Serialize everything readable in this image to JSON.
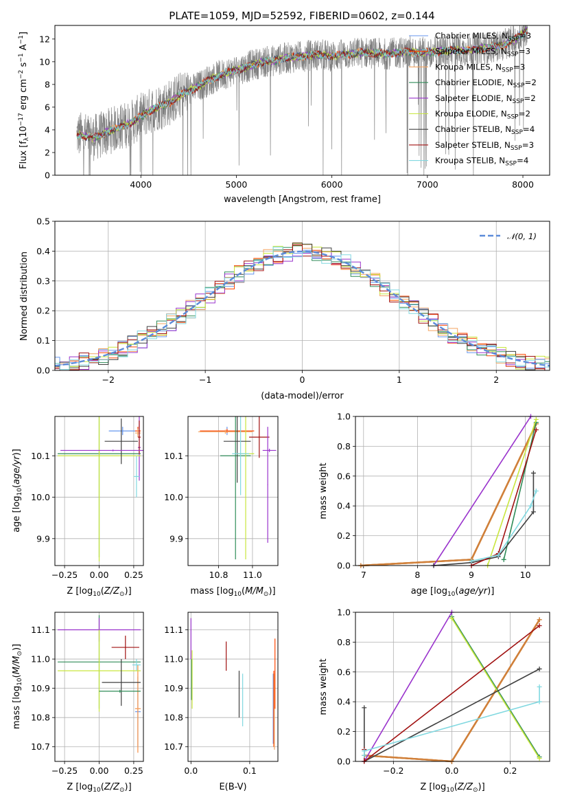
{
  "figure": {
    "title": "PLATE=1059, MJD=52592, FIBERID=0602, z=0.144"
  },
  "series_colors": {
    "Chabrier MILES": "#6495ed",
    "Salpeter MILES": "#ff4500",
    "Kroupa MILES": "#f4a460",
    "Chabrier ELODIE": "#2e8b57",
    "Salpeter ELODIE": "#9932cc",
    "Kroupa ELODIE": "#c8e63c",
    "Chabrier STELIB": "#404040",
    "Salpeter STELIB": "#a01010",
    "Kroupa STELIB": "#80d8e0",
    "data": "#808080",
    "normal": "#5b8bd9",
    "bold_path": "#d0803a"
  },
  "chart_data": [
    {
      "id": "spectrum",
      "type": "line",
      "xlabel": "wavelength [Angstrom, rest frame]",
      "ylabel": "Flux [f_λ 10^-17 erg cm^-2 s^-1 A^-1]",
      "xlim": [
        3100,
        8280
      ],
      "ylim": [
        0,
        13.2
      ],
      "xticks": [
        4000,
        5000,
        6000,
        7000,
        8000
      ],
      "yticks": [
        0,
        2,
        4,
        6,
        8,
        10,
        12
      ],
      "grid": false,
      "legend_position": "right",
      "legend": [
        {
          "label": "Chabrier MILES, N_SSP=3",
          "name": "Chabrier MILES",
          "text": "Chabrier MILES, N",
          "sub": "SSP",
          "tail": "=3"
        },
        {
          "label": "Salpeter MILES, N_SSP=3",
          "name": "Salpeter MILES",
          "text": "Salpeter MILES, N",
          "sub": "SSP",
          "tail": "=3"
        },
        {
          "label": "Kroupa MILES, N_SSP=3",
          "name": "Kroupa MILES",
          "text": "Kroupa MILES, N",
          "sub": "SSP",
          "tail": "=3"
        },
        {
          "label": "Chabrier ELODIE, N_SSP=2",
          "name": "Chabrier ELODIE",
          "text": "Chabrier ELODIE, N",
          "sub": "SSP",
          "tail": "=2"
        },
        {
          "label": "Salpeter ELODIE, N_SSP=2",
          "name": "Salpeter ELODIE",
          "text": "Salpeter ELODIE, N",
          "sub": "SSP",
          "tail": "=2"
        },
        {
          "label": "Kroupa ELODIE, N_SSP=2",
          "name": "Kroupa ELODIE",
          "text": "Kroupa ELODIE, N",
          "sub": "SSP",
          "tail": "=2"
        },
        {
          "label": "Chabrier STELIB, N_SSP=4",
          "name": "Chabrier STELIB",
          "text": "Chabrier STELIB, N",
          "sub": "SSP",
          "tail": "=4"
        },
        {
          "label": "Salpeter STELIB, N_SSP=3",
          "name": "Salpeter STELIB",
          "text": "Salpeter STELIB, N",
          "sub": "SSP",
          "tail": "=3"
        },
        {
          "label": "Kroupa STELIB, N_SSP=4",
          "name": "Kroupa STELIB",
          "text": "Kroupa STELIB, N",
          "sub": "SSP",
          "tail": "=4"
        }
      ],
      "model_continuum": {
        "wavelength": [
          3330,
          3400,
          3500,
          3600,
          3700,
          3800,
          3900,
          4000,
          4100,
          4200,
          4300,
          4400,
          4500,
          4600,
          4700,
          4800,
          4900,
          5000,
          5100,
          5200,
          5300,
          5400,
          5500,
          5600,
          5700,
          5800,
          5900,
          6000,
          6100,
          6200,
          6300,
          6400,
          6500,
          6600,
          6700,
          6800,
          6900,
          7000,
          7100,
          7200,
          7300,
          7400,
          7500,
          7600,
          7700,
          7800,
          7900,
          8000,
          8050
        ],
        "flux": [
          3.6,
          3.5,
          3.3,
          3.6,
          4.0,
          4.3,
          4.6,
          5.2,
          5.7,
          6.1,
          6.4,
          7.0,
          7.4,
          7.8,
          8.3,
          8.7,
          9.0,
          9.3,
          9.5,
          9.8,
          10.0,
          10.1,
          10.3,
          10.4,
          10.5,
          10.6,
          10.6,
          10.5,
          10.6,
          10.7,
          10.8,
          10.8,
          10.7,
          10.7,
          10.8,
          10.9,
          10.8,
          10.8,
          10.9,
          11.0,
          11.0,
          11.0,
          11.1,
          11.2,
          11.3,
          11.5,
          11.9,
          12.5,
          12.9
        ]
      },
      "observed_noise_amplitude": 1.4
    },
    {
      "id": "residuals",
      "type": "line",
      "xlabel": "(data-model)/error",
      "ylabel": "Normed distribution",
      "xlim": [
        -2.55,
        2.55
      ],
      "ylim": [
        0,
        0.5
      ],
      "xticks": [
        -2,
        -1,
        0,
        1,
        2
      ],
      "xticklabels": [
        "−2",
        "−1",
        "0",
        "1",
        "2"
      ],
      "yticks": [
        0.0,
        0.1,
        0.2,
        0.3,
        0.4,
        0.5
      ],
      "yticklabels": [
        "0.0",
        "0.1",
        "0.2",
        "0.3",
        "0.4",
        "0.5"
      ],
      "grid": true,
      "legend": "𝒩(0, 1)",
      "legend_position": "top-right",
      "bin_width": 0.1,
      "histogram_series": [
        "Chabrier MILES",
        "Salpeter MILES",
        "Kroupa MILES",
        "Chabrier ELODIE",
        "Salpeter ELODIE",
        "Kroupa ELODIE",
        "Chabrier STELIB",
        "Salpeter STELIB",
        "Kroupa STELIB"
      ]
    },
    {
      "id": "age-vs-Z",
      "type": "scatter",
      "xlabel": "Z [log10(Z/Z☉)]",
      "ylabel": "age [log10(age/yr)]",
      "xlim": [
        -0.32,
        0.32
      ],
      "ylim": [
        9.835,
        10.195
      ],
      "xticks": [
        -0.25,
        0.0,
        0.25
      ],
      "xticklabels": [
        "−0.25",
        "0.00",
        "0.25"
      ],
      "yticks": [
        9.9,
        10.0,
        10.1
      ],
      "yticklabels": [
        "9.9",
        "10.0",
        "10.1"
      ],
      "grid": true,
      "points": [
        {
          "series": "Chabrier MILES",
          "x": 0.17,
          "xerr": 0.1,
          "y": 10.16,
          "yerr": 0.01
        },
        {
          "series": "Salpeter MILES",
          "x": 0.28,
          "xerr": 0.02,
          "y": 10.16,
          "yerr": 0.01
        },
        {
          "series": "Kroupa MILES",
          "x": 0.28,
          "xerr": 0.02,
          "y": 10.155,
          "yerr": 0.01
        },
        {
          "series": "Chabrier ELODIE",
          "x": 0.0,
          "xerr": 0.3,
          "y": 10.105,
          "yerr": 0.25
        },
        {
          "series": "Salpeter ELODIE",
          "x": 0.29,
          "xerr": 0.01,
          "y": 10.12,
          "yerr": 0.08
        },
        {
          "series": "Kroupa ELODIE",
          "x": 0.0,
          "xerr": 0.3,
          "y": 10.1,
          "yerr": 0.255
        },
        {
          "series": "Chabrier STELIB",
          "x": 0.16,
          "xerr": 0.12,
          "y": 10.135,
          "yerr": 0.055
        },
        {
          "series": "Salpeter STELIB",
          "x": 0.29,
          "xerr": 0.01,
          "y": 10.145,
          "yerr": 0.04
        },
        {
          "series": "Kroupa STELIB",
          "x": 0.27,
          "xerr": 0.02,
          "y": 10.05,
          "yerr": 0.05
        },
        {
          "series": "Salpeter ELODIE",
          "x": 0.1,
          "xerr": 0.38,
          "y": 10.113,
          "yerr": 0.002
        }
      ]
    },
    {
      "id": "age-vs-mass",
      "type": "scatter",
      "xlabel": "mass [log10(M/M☉)]",
      "ylabel": "",
      "xlim": [
        10.62,
        11.15
      ],
      "ylim": [
        9.835,
        10.195
      ],
      "xticks": [
        10.8,
        11.0
      ],
      "xticklabels": [
        "10.8",
        "11.0"
      ],
      "yticks": [
        9.9,
        10.0,
        10.1
      ],
      "yticklabels": [
        "9.9",
        "10.0",
        "10.1"
      ],
      "grid": true,
      "points": [
        {
          "series": "Chabrier MILES",
          "x": 10.85,
          "xerr": 0.15,
          "y": 10.16,
          "yerr": 0.01
        },
        {
          "series": "Salpeter MILES",
          "x": 10.85,
          "xerr": 0.16,
          "y": 10.16,
          "yerr": 0.005
        },
        {
          "series": "Kroupa MILES",
          "x": 10.84,
          "xerr": 0.16,
          "y": 10.158,
          "yerr": 0.005
        },
        {
          "series": "Chabrier ELODIE",
          "x": 10.9,
          "xerr": 0.09,
          "y": 10.1,
          "yerr": 0.25
        },
        {
          "series": "Salpeter ELODIE",
          "x": 11.1,
          "xerr": 0.04,
          "y": 10.113,
          "yerr": 0.004
        },
        {
          "series": "Kroupa ELODIE",
          "x": 10.96,
          "xerr": 0.05,
          "y": 10.105,
          "yerr": 0.255
        },
        {
          "series": "Chabrier STELIB",
          "x": 10.91,
          "xerr": 0.08,
          "y": 10.135,
          "yerr": 0.1
        },
        {
          "series": "Salpeter STELIB",
          "x": 11.04,
          "xerr": 0.06,
          "y": 10.145,
          "yerr": 0.05
        },
        {
          "series": "Kroupa STELIB",
          "x": 10.93,
          "xerr": 0.05,
          "y": 10.105,
          "yerr": 0.1
        },
        {
          "series": "Salpeter ELODIE",
          "x": 11.09,
          "xerr": 0.002,
          "y": 10.03,
          "yerr": 0.14
        }
      ]
    },
    {
      "id": "massweight-vs-age",
      "type": "line",
      "xlabel": "age [log10(age/yr)]",
      "ylabel": "mass weight",
      "xlim": [
        6.85,
        10.45
      ],
      "ylim": [
        0,
        1.0
      ],
      "xticks": [
        7,
        8,
        9,
        10
      ],
      "xticklabels": [
        "7",
        "8",
        "9",
        "10"
      ],
      "yticks": [
        0.0,
        0.2,
        0.4,
        0.6,
        0.8,
        1.0
      ],
      "yticklabels": [
        "0.0",
        "0.2",
        "0.4",
        "0.6",
        "0.8",
        "1.0"
      ],
      "grid": true,
      "series": [
        {
          "name": "Chabrier MILES",
          "x": [
            6.95,
            9.0,
            10.2
          ],
          "y": [
            0.0,
            0.04,
            0.95
          ],
          "bold": true
        },
        {
          "name": "Salpeter MILES",
          "x": [
            6.95,
            9.0,
            10.2
          ],
          "y": [
            0.0,
            0.04,
            0.95
          ],
          "bold": true
        },
        {
          "name": "Kroupa MILES",
          "x": [
            6.95,
            9.0,
            10.2
          ],
          "y": [
            0.0,
            0.04,
            0.95
          ],
          "bold": true
        },
        {
          "name": "Chabrier ELODIE",
          "x": [
            9.6,
            10.2
          ],
          "y": [
            0.04,
            0.96
          ]
        },
        {
          "name": "Salpeter ELODIE",
          "x": [
            8.3,
            10.1
          ],
          "y": [
            0.0,
            1.0
          ]
        },
        {
          "name": "Kroupa ELODIE",
          "x": [
            9.3,
            10.2
          ],
          "y": [
            0.0,
            0.98
          ]
        },
        {
          "name": "Chabrier STELIB",
          "x": [
            8.3,
            9.0,
            9.5,
            10.15,
            10.15
          ],
          "y": [
            0.0,
            0.02,
            0.06,
            0.36,
            0.62
          ]
        },
        {
          "name": "Salpeter STELIB",
          "x": [
            9.0,
            9.5,
            10.2
          ],
          "y": [
            0.0,
            0.08,
            0.91
          ]
        },
        {
          "name": "Kroupa STELIB",
          "x": [
            9.0,
            9.5,
            10.1,
            10.2
          ],
          "y": [
            0.03,
            0.07,
            0.4,
            0.5
          ]
        }
      ]
    },
    {
      "id": "mass-vs-Z",
      "type": "scatter",
      "xlabel": "Z [log10(Z/Z☉)]",
      "ylabel": "mass [log10(M/M☉)]",
      "xlim": [
        -0.32,
        0.32
      ],
      "ylim": [
        10.65,
        11.16
      ],
      "xticks": [
        -0.25,
        0.0,
        0.25
      ],
      "xticklabels": [
        "−0.25",
        "0.00",
        "0.25"
      ],
      "yticks": [
        10.7,
        10.8,
        10.9,
        11.0,
        11.1
      ],
      "yticklabels": [
        "10.7",
        "10.8",
        "10.9",
        "11.0",
        "11.1"
      ],
      "grid": true,
      "points": [
        {
          "series": "Chabrier MILES",
          "x": 0.28,
          "xerr": 0.02,
          "y": 10.82,
          "yerr": 0.12
        },
        {
          "series": "Salpeter MILES",
          "x": 0.28,
          "xerr": 0.02,
          "y": 10.83,
          "yerr": 0.15
        },
        {
          "series": "Kroupa MILES",
          "x": 0.28,
          "xerr": 0.02,
          "y": 10.83,
          "yerr": 0.15
        },
        {
          "series": "Chabrier ELODIE",
          "x": 0.0,
          "xerr": 0.3,
          "y": 10.99,
          "yerr": 0.16
        },
        {
          "series": "Salpeter ELODIE",
          "x": 0.0,
          "xerr": 0.3,
          "y": 11.1,
          "yerr": 0.04
        },
        {
          "series": "Kroupa ELODIE",
          "x": 0.0,
          "xerr": 0.3,
          "y": 10.96,
          "yerr": 0.14
        },
        {
          "series": "Chabrier STELIB",
          "x": 0.16,
          "xerr": 0.14,
          "y": 10.92,
          "yerr": 0.08
        },
        {
          "series": "Salpeter STELIB",
          "x": 0.19,
          "xerr": 0.1,
          "y": 11.04,
          "yerr": 0.04
        },
        {
          "series": "Kroupa STELIB",
          "x": 0.27,
          "xerr": 0.03,
          "y": 10.98,
          "yerr": 0.02
        },
        {
          "series": "Chabrier ELODIE",
          "x": 0.15,
          "xerr": 0.15,
          "y": 10.89,
          "yerr": 0.005
        }
      ]
    },
    {
      "id": "mass-vs-EBV",
      "type": "scatter",
      "xlabel": "E(B-V)",
      "ylabel": "",
      "xlim": [
        -0.005,
        0.148
      ],
      "ylim": [
        10.65,
        11.16
      ],
      "xticks": [
        0.0,
        0.1
      ],
      "xticklabels": [
        "0.0",
        "0.1"
      ],
      "yticks": [
        10.7,
        10.8,
        10.9,
        11.0,
        11.1
      ],
      "yticklabels": [
        "10.7",
        "10.8",
        "10.9",
        "11.0",
        "11.1"
      ],
      "grid": true,
      "points": [
        {
          "series": "Chabrier MILES",
          "x": 0.14,
          "xerr": 0.0,
          "y": 10.83,
          "yerr": 0.12
        },
        {
          "series": "Salpeter MILES",
          "x": 0.141,
          "xerr": 0.0,
          "y": 10.83,
          "yerr": 0.13
        },
        {
          "series": "Kroupa MILES",
          "x": 0.142,
          "xerr": 0.0,
          "y": 10.82,
          "yerr": 0.13
        },
        {
          "series": "Chabrier ELODIE",
          "x": 0.001,
          "xerr": 0.0,
          "y": 10.93,
          "yerr": 0.07
        },
        {
          "series": "Salpeter ELODIE",
          "x": 0.0,
          "xerr": 0.0,
          "y": 11.07,
          "yerr": 0.07
        },
        {
          "series": "Kroupa ELODIE",
          "x": 0.002,
          "xerr": 0.0,
          "y": 10.93,
          "yerr": 0.1
        },
        {
          "series": "Chabrier STELIB",
          "x": 0.082,
          "xerr": 0.0,
          "y": 10.88,
          "yerr": 0.08
        },
        {
          "series": "Salpeter STELIB",
          "x": 0.06,
          "xerr": 0.0,
          "y": 11.01,
          "yerr": 0.05
        },
        {
          "series": "Kroupa STELIB",
          "x": 0.088,
          "xerr": 0.0,
          "y": 10.86,
          "yerr": 0.09
        },
        {
          "series": "Salpeter MILES",
          "x": 0.143,
          "xerr": 0.0,
          "y": 10.95,
          "yerr": 0.12
        }
      ]
    },
    {
      "id": "massweight-vs-Z",
      "type": "line",
      "xlabel": "Z [log10(Z/Z☉)]",
      "ylabel": "mass weight",
      "xlim": [
        -0.33,
        0.335
      ],
      "ylim": [
        0,
        1.0
      ],
      "xticks": [
        -0.2,
        0.0,
        0.2
      ],
      "xticklabels": [
        "−0.2",
        "0.0",
        "0.2"
      ],
      "yticks": [
        0.0,
        0.2,
        0.4,
        0.6,
        0.8,
        1.0
      ],
      "yticklabels": [
        "0.0",
        "0.2",
        "0.4",
        "0.6",
        "0.8",
        "1.0"
      ],
      "grid": true,
      "series": [
        {
          "name": "Chabrier MILES",
          "x": [
            -0.3,
            0.0,
            0.3
          ],
          "y": [
            0.04,
            0.0,
            0.95
          ],
          "bold": true
        },
        {
          "name": "Salpeter MILES",
          "x": [
            -0.3,
            0.0,
            0.3
          ],
          "y": [
            0.04,
            0.0,
            0.95
          ],
          "bold": true
        },
        {
          "name": "Kroupa MILES",
          "x": [
            -0.3,
            0.0,
            0.3
          ],
          "y": [
            0.04,
            0.0,
            0.95
          ],
          "bold": true
        },
        {
          "name": "Chabrier ELODIE",
          "x": [
            0.0,
            0.3
          ],
          "y": [
            0.97,
            0.03
          ]
        },
        {
          "name": "Salpeter ELODIE",
          "x": [
            -0.3,
            0.0
          ],
          "y": [
            0.0,
            1.0
          ]
        },
        {
          "name": "Kroupa ELODIE",
          "x": [
            0.0,
            0.3
          ],
          "y": [
            0.96,
            0.02
          ]
        },
        {
          "name": "Chabrier STELIB",
          "x": [
            -0.3,
            -0.3,
            0.3
          ],
          "y": [
            0.36,
            0.0,
            0.62
          ]
        },
        {
          "name": "Salpeter STELIB",
          "x": [
            -0.3,
            -0.3,
            0.3
          ],
          "y": [
            0.08,
            0.0,
            0.91
          ]
        },
        {
          "name": "Kroupa STELIB",
          "x": [
            -0.3,
            -0.3,
            0.3,
            0.3
          ],
          "y": [
            0.04,
            0.07,
            0.4,
            0.5
          ]
        }
      ]
    }
  ]
}
